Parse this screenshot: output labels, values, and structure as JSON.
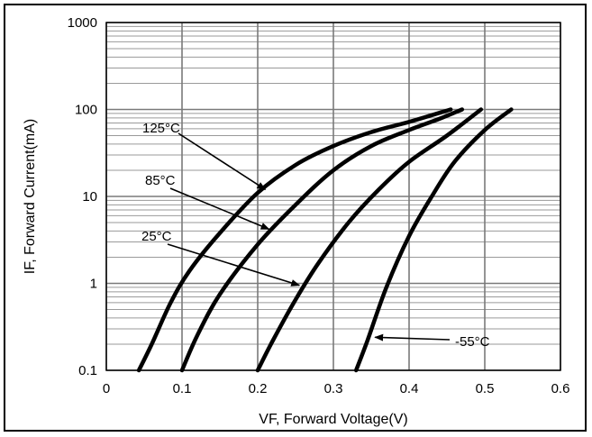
{
  "chart_data": {
    "type": "line",
    "title": "",
    "xlabel": "VF, Forward Voltage(V)",
    "ylabel": "IF, Forward Current(mA)",
    "xlim": [
      0,
      0.6
    ],
    "ylim": [
      0.1,
      1000
    ],
    "y_scale": "log",
    "grid": true,
    "x_ticks": [
      "0",
      "0.1",
      "0.2",
      "0.3",
      "0.4",
      "0.5",
      "0.6"
    ],
    "y_ticks": [
      "0.1",
      "1",
      "10",
      "100",
      "1000"
    ],
    "series": [
      {
        "name": "125°C",
        "color": "#000000",
        "points": [
          [
            0.043,
            0.1
          ],
          [
            0.06,
            0.2
          ],
          [
            0.085,
            0.6
          ],
          [
            0.11,
            1.4
          ],
          [
            0.15,
            3.8
          ],
          [
            0.2,
            11
          ],
          [
            0.25,
            23
          ],
          [
            0.3,
            38
          ],
          [
            0.35,
            55
          ],
          [
            0.4,
            72
          ],
          [
            0.455,
            100
          ]
        ]
      },
      {
        "name": "85°C",
        "color": "#000000",
        "points": [
          [
            0.1,
            0.1
          ],
          [
            0.12,
            0.25
          ],
          [
            0.15,
            0.75
          ],
          [
            0.2,
            2.8
          ],
          [
            0.25,
            8
          ],
          [
            0.3,
            20
          ],
          [
            0.35,
            38
          ],
          [
            0.4,
            58
          ],
          [
            0.44,
            78
          ],
          [
            0.47,
            100
          ]
        ]
      },
      {
        "name": "25°C",
        "color": "#000000",
        "points": [
          [
            0.2,
            0.1
          ],
          [
            0.22,
            0.22
          ],
          [
            0.25,
            0.65
          ],
          [
            0.28,
            1.7
          ],
          [
            0.32,
            5
          ],
          [
            0.36,
            12
          ],
          [
            0.4,
            25
          ],
          [
            0.45,
            50
          ],
          [
            0.495,
            100
          ]
        ]
      },
      {
        "name": "-55°C",
        "color": "#000000",
        "points": [
          [
            0.33,
            0.1
          ],
          [
            0.345,
            0.22
          ],
          [
            0.37,
            0.9
          ],
          [
            0.4,
            3.5
          ],
          [
            0.43,
            10
          ],
          [
            0.46,
            25
          ],
          [
            0.5,
            58
          ],
          [
            0.535,
            100
          ]
        ]
      }
    ],
    "annotations": [
      {
        "text": "125°C",
        "target": [
          0.21,
          12
        ]
      },
      {
        "text": "85°C",
        "target": [
          0.215,
          4.2
        ]
      },
      {
        "text": "25°C",
        "target": [
          0.255,
          0.95
        ]
      },
      {
        "text": "-55°C",
        "target": [
          0.355,
          0.24
        ]
      }
    ]
  }
}
